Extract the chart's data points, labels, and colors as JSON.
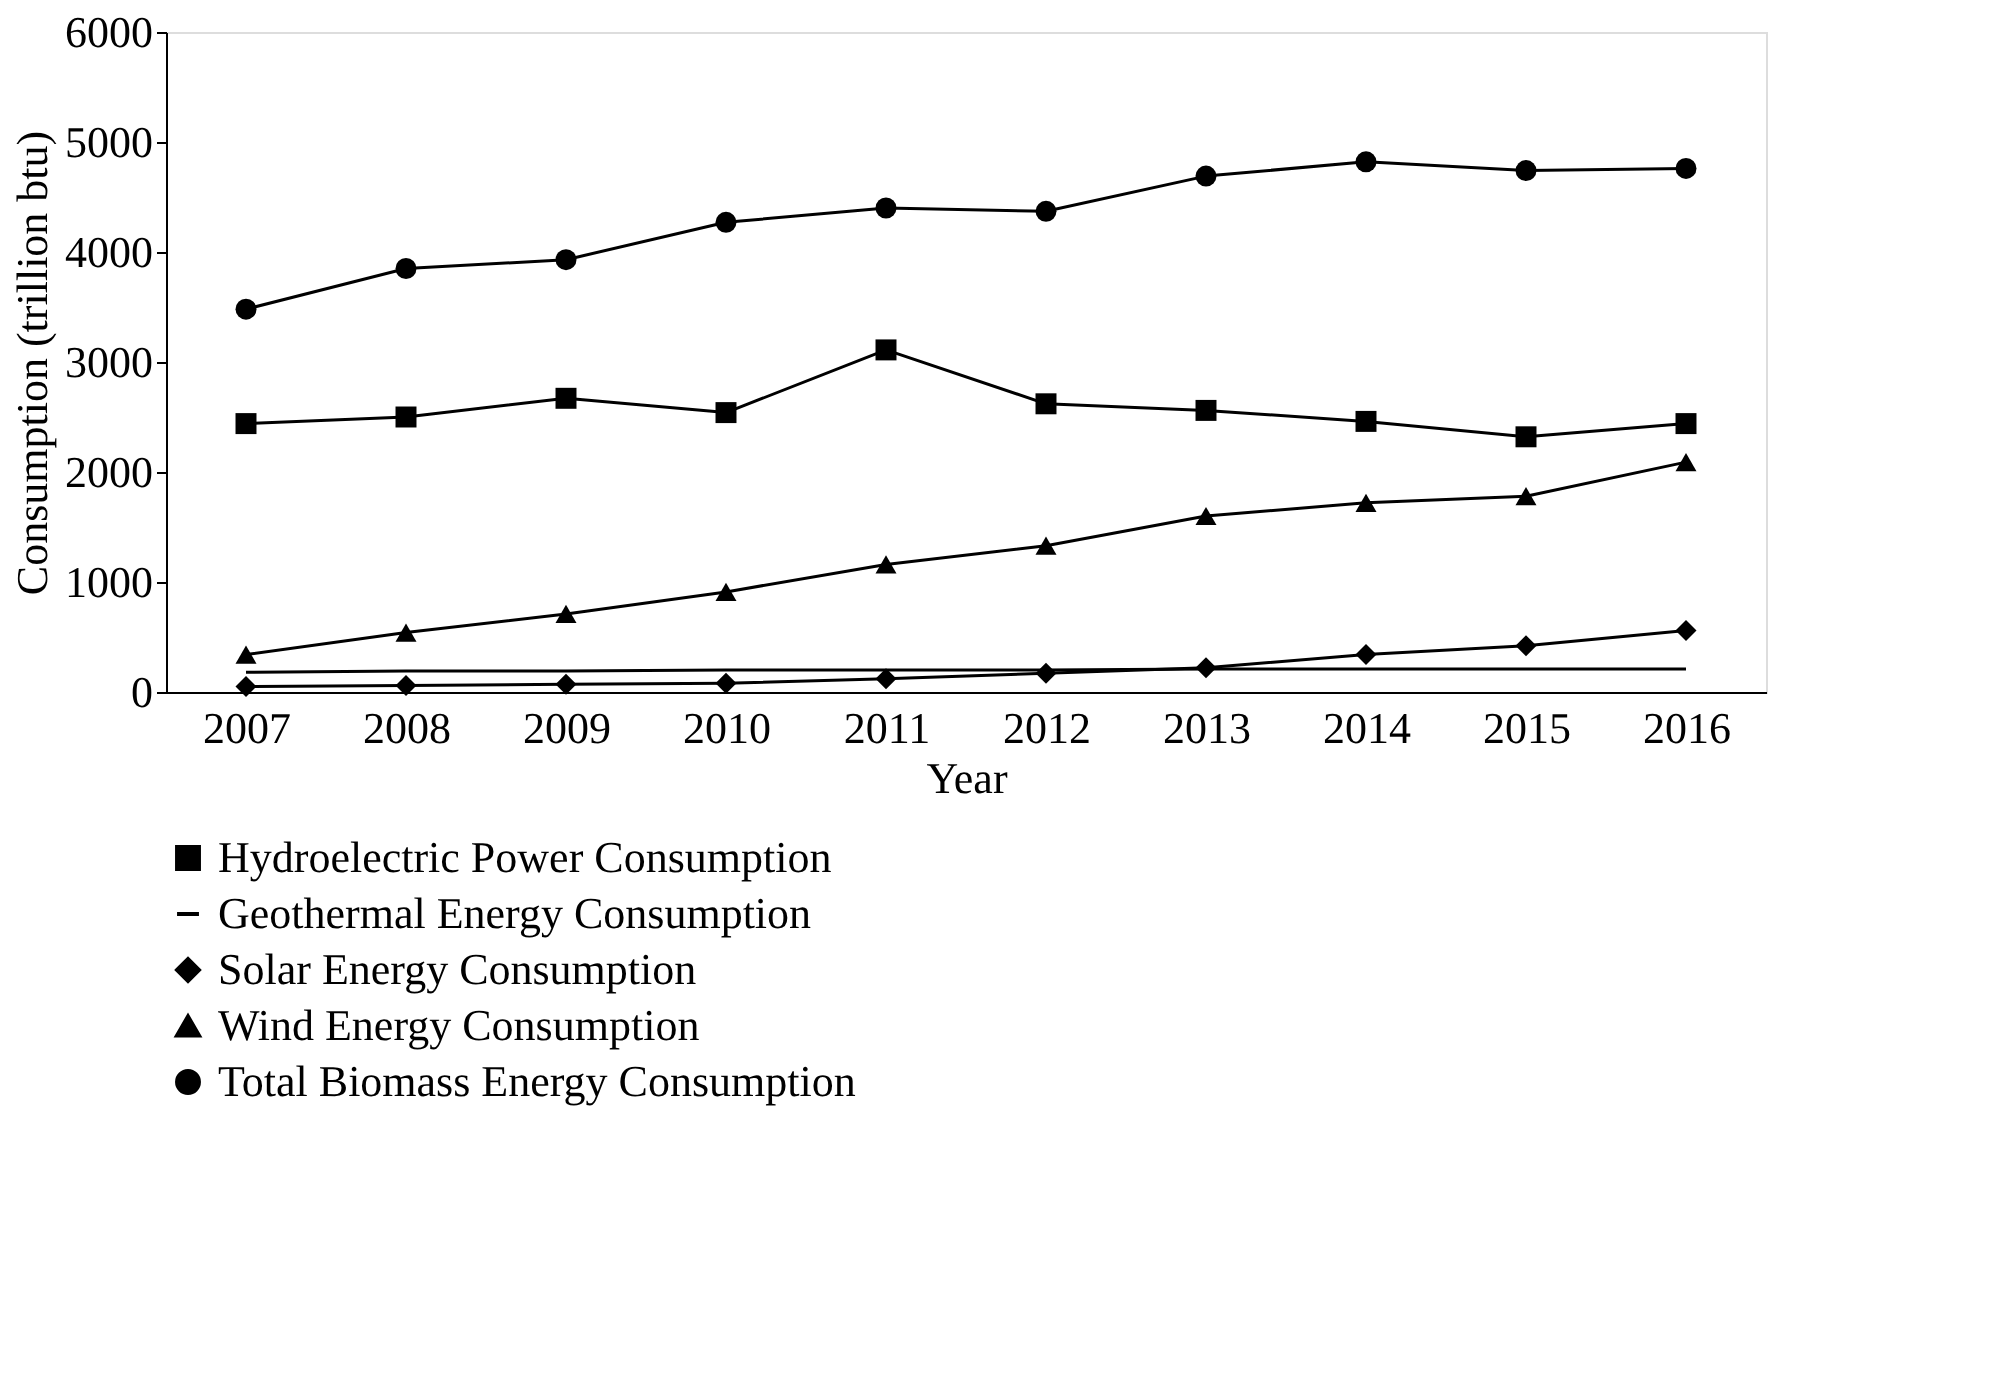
{
  "chart_data": {
    "type": "line",
    "xlabel": "Year",
    "ylabel": "Consumption (trillion btu)",
    "categories": [
      "2007",
      "2008",
      "2009",
      "2010",
      "2011",
      "2012",
      "2013",
      "2014",
      "2015",
      "2016"
    ],
    "ylim": [
      0,
      6000
    ],
    "yticks": [
      0,
      1000,
      2000,
      3000,
      4000,
      5000,
      6000
    ],
    "grid": false,
    "legend": "bottom",
    "line_style": "solid",
    "series": [
      {
        "name": "Hydroelectric Power Consumption",
        "color": "#000000",
        "marker": "square",
        "values": [
          2440,
          2500,
          2670,
          2540,
          3110,
          2620,
          2560,
          2460,
          2320,
          2440
        ]
      },
      {
        "name": "Geothermal Energy Consumption",
        "color": "#000000",
        "marker": "none",
        "values": [
          180,
          190,
          190,
          200,
          200,
          200,
          210,
          210,
          210,
          210
        ]
      },
      {
        "name": "Solar Energy Consumption",
        "color": "#000000",
        "marker": "diamond",
        "values": [
          50,
          60,
          70,
          80,
          120,
          170,
          220,
          340,
          420,
          560
        ]
      },
      {
        "name": "Wind Energy Consumption",
        "color": "#000000",
        "marker": "triangle",
        "values": [
          340,
          540,
          710,
          910,
          1160,
          1330,
          1600,
          1720,
          1780,
          2090
        ]
      },
      {
        "name": "Total Biomass Energy Consumption",
        "color": "#000000",
        "marker": "circle",
        "values": [
          3480,
          3850,
          3930,
          4270,
          4400,
          4370,
          4690,
          4820,
          4740,
          4760
        ]
      }
    ]
  }
}
